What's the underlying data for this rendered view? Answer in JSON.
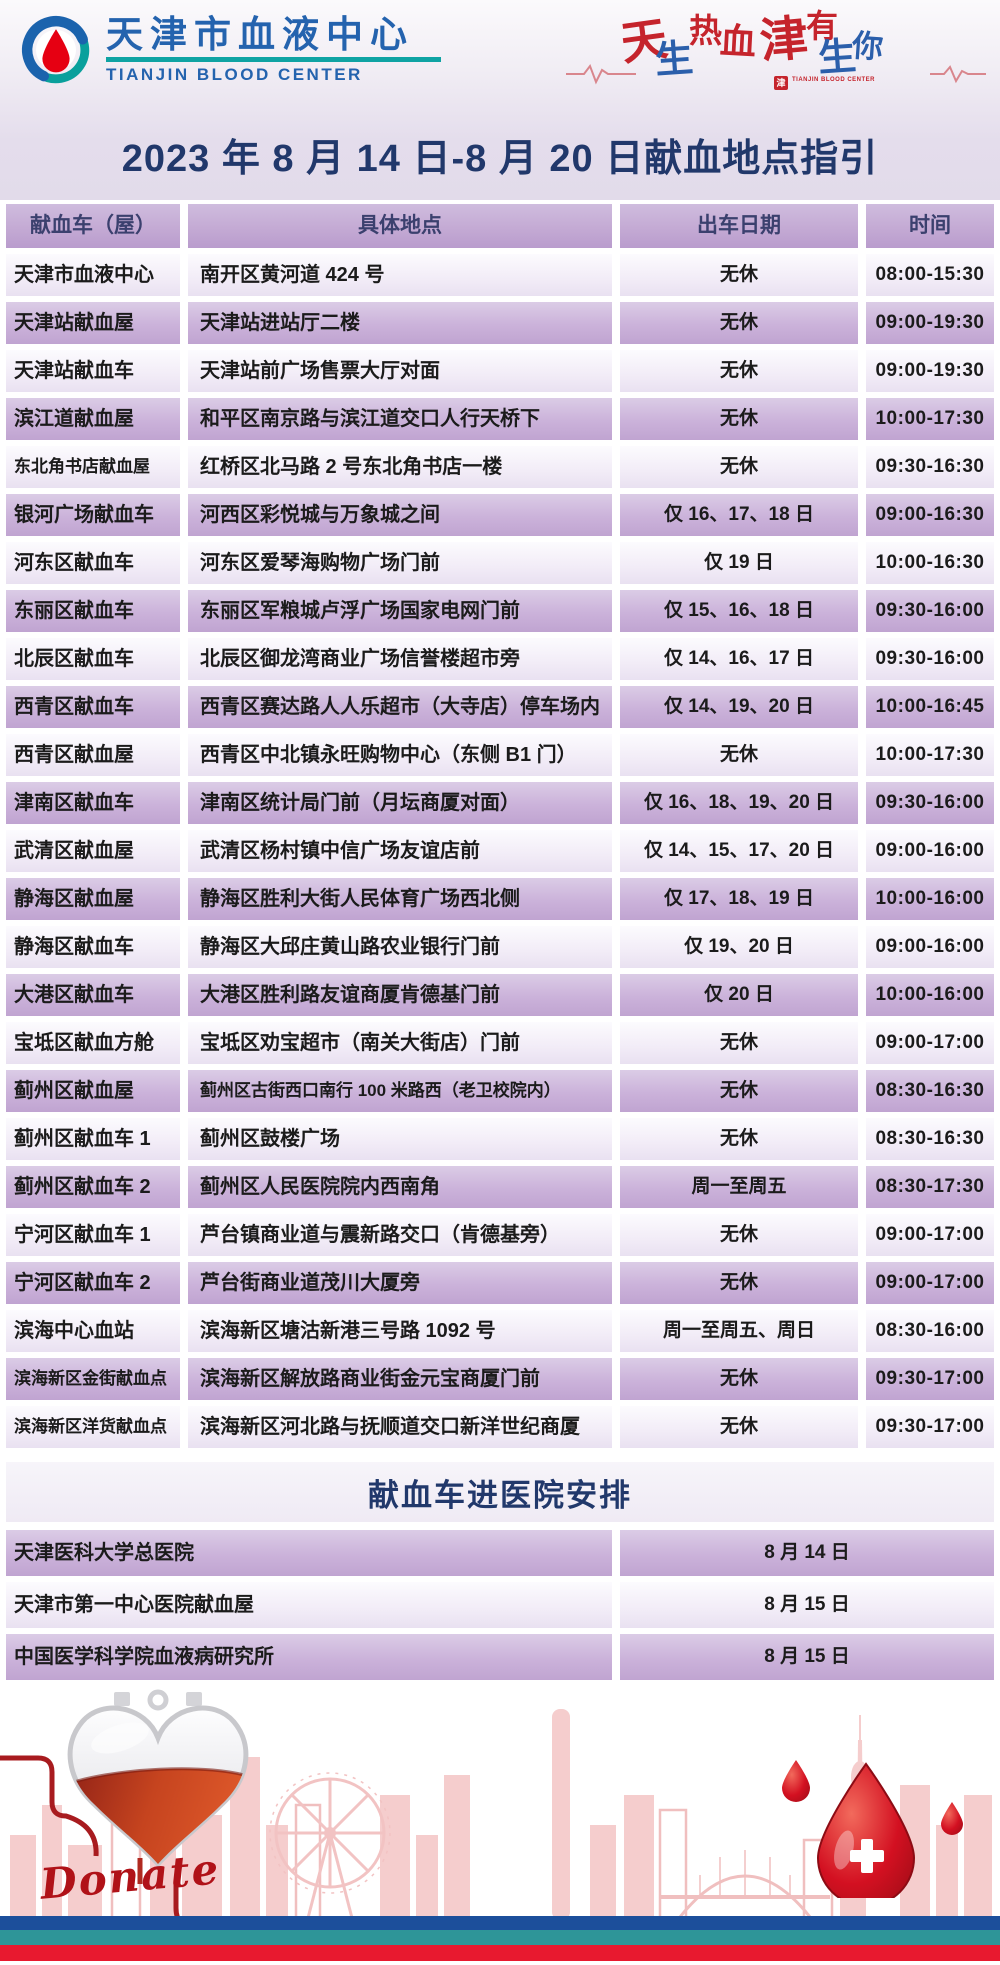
{
  "header": {
    "logo_cn": "天津市血液中心",
    "logo_en": "TIANJIN BLOOD CENTER",
    "slogan_chars": [
      {
        "ch": "天",
        "c": "red"
      },
      {
        "ch": "生",
        "c": "blue"
      },
      {
        "ch": "热",
        "c": "red"
      },
      {
        "ch": "血",
        "c": "red"
      },
      {
        "ch": "津",
        "c": "red"
      },
      {
        "ch": "有",
        "c": "red"
      },
      {
        "ch": "生",
        "c": "blue"
      },
      {
        "ch": "你",
        "c": "blue"
      }
    ],
    "seal_char": "津",
    "seal_text": "TIANJIN BLOOD CENTER"
  },
  "title": "2023 年 8 月 14 日-8 月 20 日献血地点指引",
  "table": {
    "columns": [
      "献血车（屋）",
      "具体地点",
      "出车日期",
      "时间"
    ],
    "rows": [
      [
        "天津市血液中心",
        "南开区黄河道 424 号",
        "无休",
        "08:00-15:30"
      ],
      [
        "天津站献血屋",
        "天津站进站厅二楼",
        "无休",
        "09:00-19:30"
      ],
      [
        "天津站献血车",
        "天津站前广场售票大厅对面",
        "无休",
        "09:00-19:30"
      ],
      [
        "滨江道献血屋",
        "和平区南京路与滨江道交口人行天桥下",
        "无休",
        "10:00-17:30"
      ],
      [
        "东北角书店献血屋",
        "红桥区北马路 2 号东北角书店一楼",
        "无休",
        "09:30-16:30"
      ],
      [
        "银河广场献血车",
        "河西区彩悦城与万象城之间",
        "仅 16、17、18 日",
        "09:00-16:30"
      ],
      [
        "河东区献血车",
        "河东区爱琴海购物广场门前",
        "仅 19 日",
        "10:00-16:30"
      ],
      [
        "东丽区献血车",
        "东丽区军粮城卢浮广场国家电网门前",
        "仅 15、16、18 日",
        "09:30-16:00"
      ],
      [
        "北辰区献血车",
        "北辰区御龙湾商业广场信誉楼超市旁",
        "仅 14、16、17 日",
        "09:30-16:00"
      ],
      [
        "西青区献血车",
        "西青区赛达路人人乐超市（大寺店）停车场内",
        "仅 14、19、20 日",
        "10:00-16:45"
      ],
      [
        "西青区献血屋",
        "西青区中北镇永旺购物中心（东侧 B1 门）",
        "无休",
        "10:00-17:30"
      ],
      [
        "津南区献血车",
        "津南区统计局门前（月坛商厦对面）",
        "仅 16、18、19、20 日",
        "09:30-16:00"
      ],
      [
        "武清区献血屋",
        "武清区杨村镇中信广场友谊店前",
        "仅 14、15、17、20 日",
        "09:00-16:00"
      ],
      [
        "静海区献血屋",
        "静海区胜利大街人民体育广场西北侧",
        "仅 17、18、19 日",
        "10:00-16:00"
      ],
      [
        "静海区献血车",
        "静海区大邱庄黄山路农业银行门前",
        "仅 19、20 日",
        "09:00-16:00"
      ],
      [
        "大港区献血车",
        "大港区胜利路友谊商厦肯德基门前",
        "仅 20 日",
        "10:00-16:00"
      ],
      [
        "宝坻区献血方舱",
        "宝坻区劝宝超市（南关大街店）门前",
        "无休",
        "09:00-17:00"
      ],
      [
        "蓟州区献血屋",
        "蓟州区古街西口南行 100 米路西（老卫校院内）",
        "无休",
        "08:30-16:30"
      ],
      [
        "蓟州区献血车 1",
        "蓟州区鼓楼广场",
        "无休",
        "08:30-16:30"
      ],
      [
        "蓟州区献血车 2",
        "蓟州区人民医院院内西南角",
        "周一至周五",
        "08:30-17:30"
      ],
      [
        "宁河区献血车 1",
        "芦台镇商业道与震新路交口（肯德基旁）",
        "无休",
        "09:00-17:00"
      ],
      [
        "宁河区献血车 2",
        "芦台街商业道茂川大厦旁",
        "无休",
        "09:00-17:00"
      ],
      [
        "滨海中心血站",
        "滨海新区塘沽新港三号路 1092 号",
        "周一至周五、周日",
        "08:30-16:00"
      ],
      [
        "滨海新区金街献血点",
        "滨海新区解放路商业街金元宝商厦门前",
        "无休",
        "09:30-17:00"
      ],
      [
        "滨海新区洋货献血点",
        "滨海新区河北路与抚顺道交口新洋世纪商厦",
        "无休",
        "09:30-17:00"
      ]
    ]
  },
  "hospital_section": {
    "title": "献血车进医院安排",
    "rows": [
      [
        "天津医科大学总医院",
        "8 月 14 日"
      ],
      [
        "天津市第一中心医院献血屋",
        "8 月 15 日"
      ],
      [
        "中国医学科学院血液病研究所",
        "8 月 15 日"
      ]
    ]
  },
  "footer": {
    "donate_label": "Donate"
  },
  "icons": {
    "logo_mark": "blood-drop-ring-icon",
    "heart_bag": "heart-blood-bag-icon",
    "blood_drop": "blood-drop-cross-icon",
    "skyline": "tianjin-skyline-icon"
  },
  "colors": {
    "title_navy": "#21386b",
    "header_cell_purple": "#bb9ccd",
    "row_purple": "#c0a4d1",
    "row_light": "#f2ecf7",
    "logo_blue": "#2463ae",
    "logo_teal": "#0fa3a3",
    "blood_red": "#e60012",
    "stripe_blue": "#1c4f9b",
    "stripe_teal": "#2e9598",
    "stripe_red": "#e8192f",
    "skyline_pink": "#f5cdcd"
  }
}
